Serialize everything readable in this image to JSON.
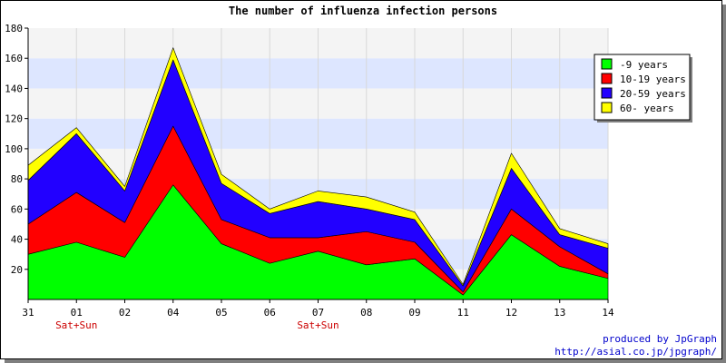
{
  "chart_data": {
    "type": "area",
    "stacked": true,
    "title": "The number of influenza infection persons",
    "categories": [
      "31",
      "01",
      "02",
      "04",
      "05",
      "06",
      "07",
      "08",
      "09",
      "11",
      "12",
      "13",
      "14"
    ],
    "category_notes": [
      "",
      "Sat+Sun",
      "",
      "",
      "",
      "",
      "Sat+Sun",
      "",
      "",
      "",
      "",
      "",
      ""
    ],
    "ylim": [
      0,
      180
    ],
    "yticks": [
      20,
      40,
      60,
      80,
      100,
      120,
      140,
      160,
      180
    ],
    "series": [
      {
        "name": "-9 years",
        "color": "#00ff00",
        "values": [
          30,
          38,
          28,
          76,
          37,
          24,
          32,
          23,
          27,
          3,
          43,
          22,
          14
        ]
      },
      {
        "name": "10-19 years",
        "color": "#ff0000",
        "values": [
          20,
          33,
          23,
          39,
          16,
          17,
          9,
          22,
          11,
          2,
          17,
          13,
          3
        ]
      },
      {
        "name": "20-59 years",
        "color": "#2200ff",
        "values": [
          29,
          39,
          21,
          44,
          24,
          16,
          24,
          15,
          15,
          4,
          27,
          8,
          17
        ]
      },
      {
        "name": "60- years",
        "color": "#ffff00",
        "values": [
          10,
          4,
          3,
          8,
          6,
          3,
          7,
          8,
          5,
          1,
          10,
          4,
          3
        ]
      }
    ],
    "legend_position": "top-right",
    "note_color": "#cc0000",
    "band_colors": [
      "#f4f4f4",
      "#dde6ff"
    ]
  },
  "footer": {
    "line1": "produced by JpGraph",
    "line2": "http://asial.co.jp/jpgraph/"
  }
}
